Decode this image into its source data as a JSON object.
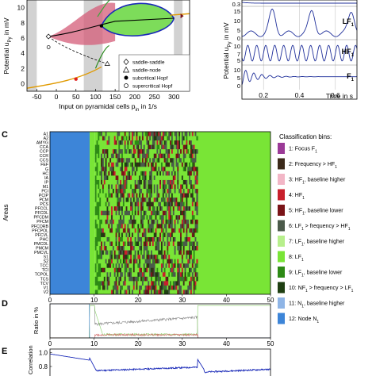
{
  "panels": {
    "A": {
      "letter": ""
    },
    "B": {
      "letter": ""
    },
    "C": {
      "letter": "C"
    },
    "D": {
      "letter": "D"
    },
    "E": {
      "letter": "E"
    }
  },
  "colors": {
    "focus": "#9b3a97",
    "freq_hf": "#3b2a1a",
    "hf_base_higher": "#f2b6c6",
    "hf": "#c8202c",
    "hf_base_lower": "#7a1418",
    "lf_hf": "#4b5a4a",
    "lf_base_higher": "#b7ef8c",
    "lf": "#79e536",
    "lf_base_lower": "#2d8a15",
    "nf_lf": "#1f3f12",
    "node_base_higher": "#8fb5e6",
    "node": "#3d85d8",
    "bif_fill": "#d45c78",
    "cycle_fill": "#7ddc5a",
    "grey_region": "#d2d2d2"
  },
  "chart_data": [
    {
      "panel": "A",
      "type": "line",
      "xlabel": "Input on pyramidal cells  p",
      "xlabel_sub": "in",
      "xlabel_unit": " in 1/s",
      "ylabel": "Potential u",
      "ylabel_sub": "Py",
      "ylabel_unit": " in mV",
      "xticks": [
        "-50",
        "0",
        "50",
        "100",
        "150",
        "200",
        "250",
        "300"
      ],
      "xtick_values": [
        -50,
        0,
        50,
        100,
        150,
        200,
        250,
        300
      ],
      "yticks": [
        "0",
        "2",
        "4",
        "6",
        "8",
        "10"
      ],
      "ytick_values": [
        0,
        2,
        4,
        6,
        8,
        10
      ],
      "xlim": [
        -75,
        340
      ],
      "ylim": [
        -1,
        11
      ],
      "legend": [
        {
          "marker": "diamond",
          "label": "saddle-saddle"
        },
        {
          "marker": "triangle",
          "label": "saddle-node"
        },
        {
          "marker": "filled-circle",
          "label": "subcritical Hopf"
        },
        {
          "marker": "open-circle",
          "label": "supercritical Hopf"
        }
      ]
    },
    {
      "panel": "B",
      "type": "line",
      "xlabel": "Time in s",
      "ylabel": "Potential u",
      "ylabel_sub": "Py",
      "ylabel_unit": " in mV",
      "xticks": [
        "0.2",
        "0.4",
        "0.6"
      ],
      "xtick_values": [
        0.2,
        0.4,
        0.6
      ],
      "xlim": [
        0.08,
        0.72
      ],
      "rows": [
        {
          "label": "",
          "yticks": [
            "0.3"
          ]
        },
        {
          "label": "LF",
          "sub": "1",
          "yticks": [
            "15",
            "10",
            "5",
            "0"
          ]
        },
        {
          "label": "HF",
          "sub": "1",
          "yticks": [
            "10",
            "7",
            "5"
          ]
        },
        {
          "label": "F",
          "sub": "1",
          "yticks": [
            "10",
            "5",
            "0"
          ]
        }
      ]
    },
    {
      "panel": "C",
      "type": "heatmap",
      "ylabel": "Areas",
      "xticks": [
        "0",
        "10",
        "20",
        "30",
        "40",
        "50"
      ],
      "xtick_values": [
        0,
        10,
        20,
        30,
        40,
        50
      ],
      "xlim": [
        0,
        50
      ],
      "areas": [
        "A1",
        "A2",
        "AMYG",
        "CCA",
        "CCP",
        "CCR",
        "CCS",
        "FEF",
        "G",
        "HC",
        "IA",
        "IP",
        "M1",
        "PCI",
        "PCIP",
        "PCM",
        "PCS",
        "PFCCL",
        "PFCDL",
        "PFCDM",
        "PFCM",
        "PFCORB",
        "PFCPOL",
        "PFCVL",
        "PHC",
        "PMCDL",
        "PMCM",
        "PMCVL",
        "S1",
        "S2",
        "TCC",
        "TCI",
        "TCPOL",
        "TCS",
        "TCV",
        "V1",
        "V2"
      ],
      "legend_title": "Classification bins:",
      "bins": [
        {
          "label": "1: Focus F",
          "sub": "1",
          "after": "",
          "color_key": "focus"
        },
        {
          "label": "2: Frequency > HF",
          "sub": "1",
          "after": "",
          "color_key": "freq_hf"
        },
        {
          "label": "3: HF",
          "sub": "1",
          "after": ", baseline higher",
          "color_key": "hf_base_higher"
        },
        {
          "label": "4: HF",
          "sub": "1",
          "after": "",
          "color_key": "hf"
        },
        {
          "label": "5: HF",
          "sub": "1",
          "after": ", baseline lower",
          "color_key": "hf_base_lower"
        },
        {
          "label": "6: LF",
          "sub": "1",
          "after": " > frequency > HF",
          "sub2": "1",
          "color_key": "lf_hf"
        },
        {
          "label": "7: LF",
          "sub": "1",
          "after": ", baseline higher",
          "color_key": "lf_base_higher"
        },
        {
          "label": "8: LF",
          "sub": "1",
          "after": "",
          "color_key": "lf"
        },
        {
          "label": "9: LF",
          "sub": "1",
          "after": ", baseline lower",
          "color_key": "lf_base_lower"
        },
        {
          "label": "10: NF",
          "sub": "1",
          "after": " > frequency > LF",
          "sub2": "1",
          "color_key": "nf_lf"
        },
        {
          "label": "11: N",
          "sub": "1",
          "after": ", baseline higher",
          "color_key": "node_base_higher"
        },
        {
          "label": "12: Node N",
          "sub": "1",
          "after": "",
          "color_key": "node"
        }
      ],
      "regions": [
        {
          "from": 0,
          "to": 9,
          "class": "node"
        },
        {
          "from": 9,
          "to": 10.2,
          "class": "lf"
        },
        {
          "from": 10.2,
          "to": 33.5,
          "class": "mixed"
        },
        {
          "from": 33.5,
          "to": 50,
          "class": "lf"
        }
      ]
    },
    {
      "panel": "D",
      "type": "line",
      "ylabel": "Ratio in %",
      "xticks": [
        "0",
        "10",
        "20",
        "30",
        "40",
        "50"
      ],
      "xtick_values": [
        0,
        10,
        20,
        30,
        40,
        50
      ],
      "xlim": [
        0,
        50
      ],
      "ylim": [
        0,
        100
      ]
    },
    {
      "panel": "E",
      "type": "line",
      "ylabel": "Correlation",
      "yticks": [
        "1.0",
        "0.8",
        "0.6"
      ],
      "ytick_values": [
        1.0,
        0.8,
        0.6
      ],
      "xlim": [
        0,
        50
      ],
      "ylim": [
        0.55,
        1.05
      ]
    }
  ]
}
